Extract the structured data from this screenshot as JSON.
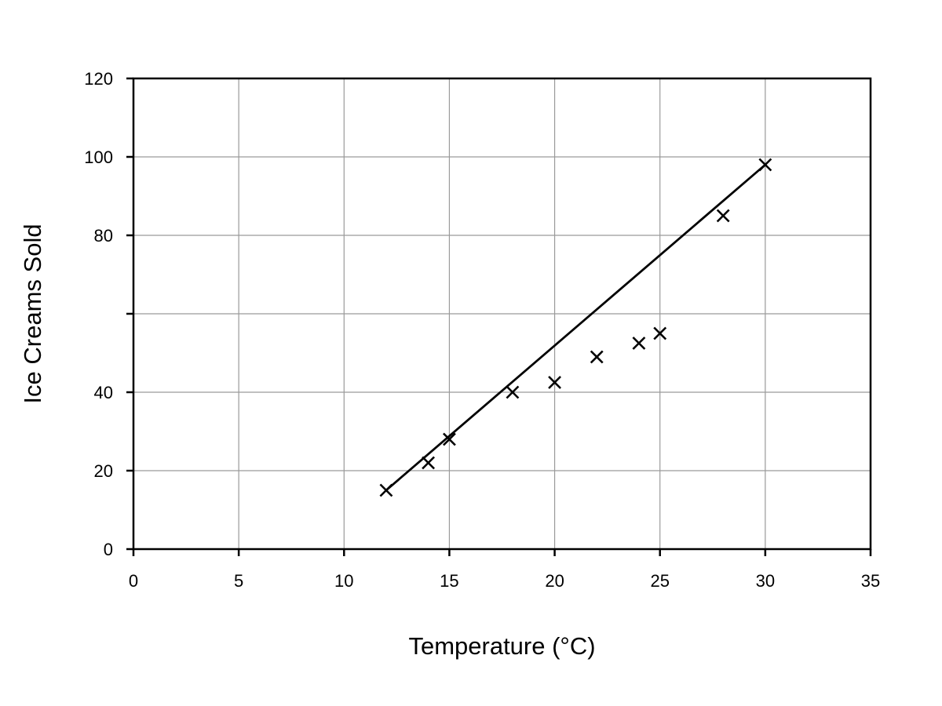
{
  "chart_data": {
    "type": "scatter",
    "title": "",
    "xlabel": "Temperature (°C)",
    "ylabel": "Ice Creams Sold",
    "xlim": [
      0,
      35
    ],
    "ylim": [
      0,
      120
    ],
    "xticks": [
      0,
      5,
      10,
      15,
      20,
      25,
      30,
      35
    ],
    "yticks": [
      0,
      20,
      40,
      60,
      80,
      100,
      120
    ],
    "xtick_labels": [
      "0",
      "5",
      "10",
      "15",
      "20",
      "25",
      "30",
      "35"
    ],
    "ytick_labels": [
      "0",
      "20",
      "40",
      "80",
      "100",
      "120"
    ],
    "ytick_label_values": [
      0,
      20,
      40,
      80,
      100,
      120
    ],
    "grid": true,
    "marker": "x",
    "colors": {
      "marker": "#000000",
      "line": "#000000",
      "grid": "#9a9a9a"
    },
    "series": [
      {
        "points": [
          {
            "x": 12,
            "y": 15
          },
          {
            "x": 14,
            "y": 22
          },
          {
            "x": 15,
            "y": 28
          },
          {
            "x": 18,
            "y": 40
          },
          {
            "x": 20,
            "y": 42.5
          },
          {
            "x": 22,
            "y": 49
          },
          {
            "x": 24,
            "y": 52.5
          },
          {
            "x": 25,
            "y": 55
          },
          {
            "x": 28,
            "y": 85
          },
          {
            "x": 30,
            "y": 98
          }
        ]
      }
    ],
    "trendline": {
      "type": "linear",
      "from": {
        "x": 12,
        "y": 15
      },
      "to": {
        "x": 30,
        "y": 98
      }
    }
  }
}
